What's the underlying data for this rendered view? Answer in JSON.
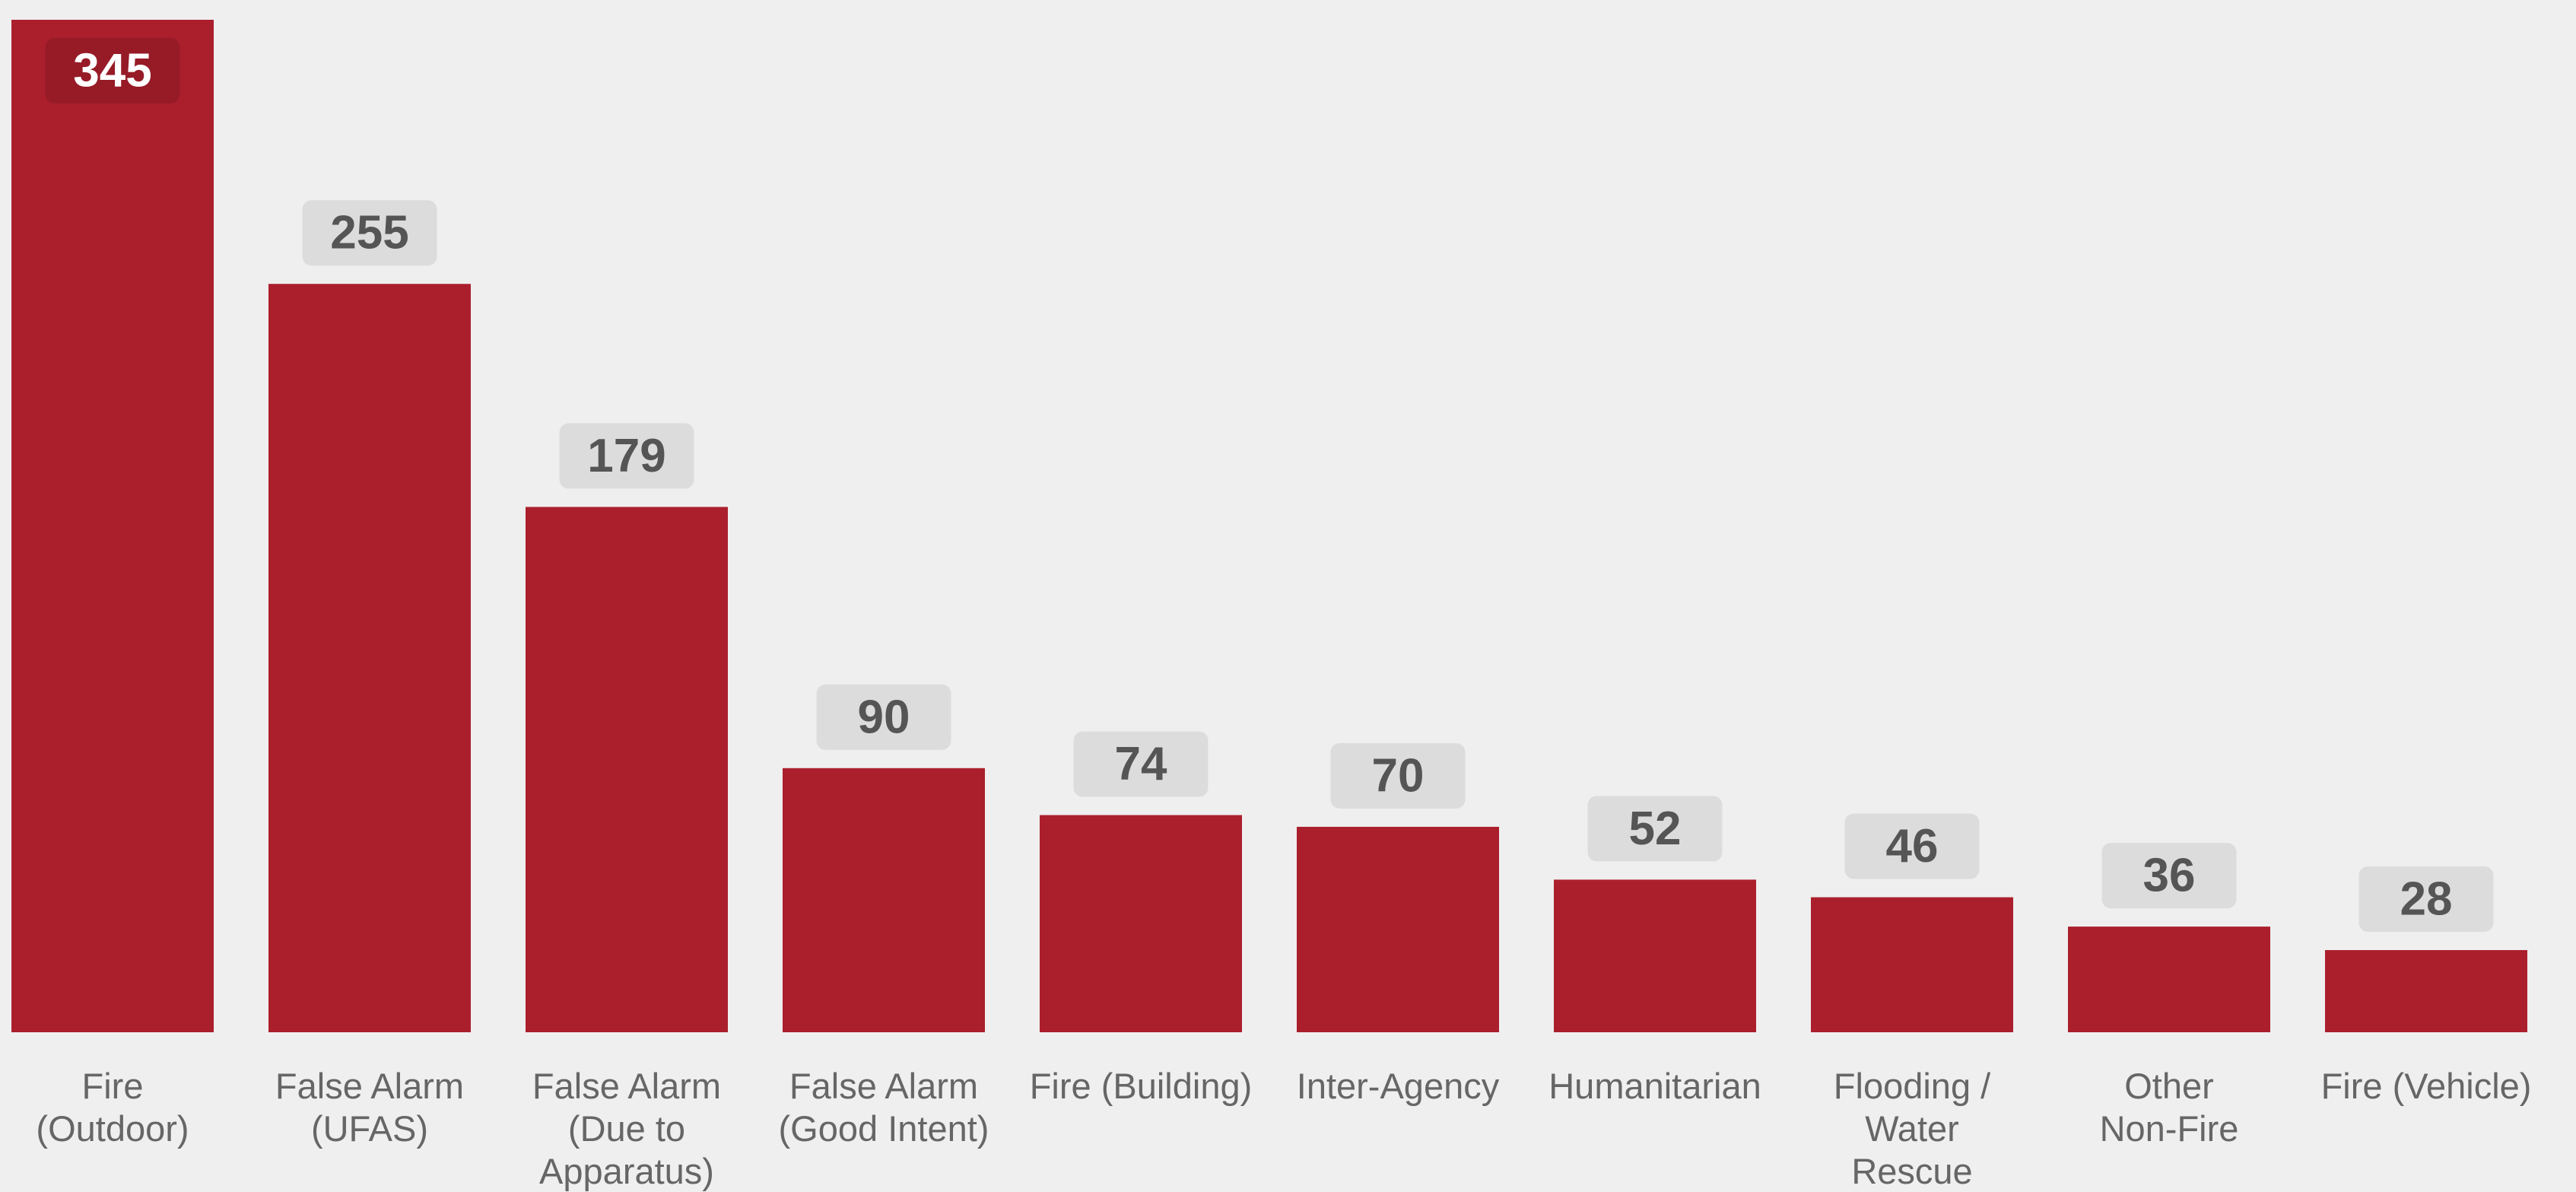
{
  "chart_data": {
    "type": "bar",
    "categories": [
      "Fire\n(Outdoor)",
      "False Alarm\n(UFAS)",
      "False Alarm\n(Due to\nApparatus)",
      "False Alarm\n(Good Intent)",
      "Fire (Building)",
      "Inter-Agency",
      "Humanitarian",
      "Flooding /\nWater\nRescue",
      "Other\nNon-Fire",
      "Fire (Vehicle)"
    ],
    "values": [
      345,
      255,
      179,
      90,
      74,
      70,
      52,
      46,
      36,
      28
    ],
    "color": "#ab1f2d"
  }
}
